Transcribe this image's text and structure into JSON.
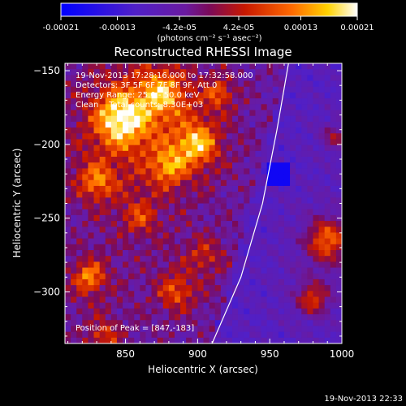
{
  "colorbar": {
    "ticks": [
      "-0.00021",
      "-0.00013",
      "-4.2e-05",
      "4.2e-05",
      "0.00013",
      "0.00021"
    ],
    "units": "(photons cm⁻² s⁻¹ asec⁻²)",
    "range": [
      -0.00021,
      0.00021
    ]
  },
  "chart_data": {
    "type": "heatmap",
    "title": "Reconstructed RHESSI Image",
    "xlabel": "Heliocentric X (arcsec)",
    "ylabel": "Heliocentric Y (arcsec)",
    "xlim": [
      808,
      1000
    ],
    "ylim": [
      -335,
      -145
    ],
    "x_ticks": [
      850,
      900,
      950,
      1000
    ],
    "y_ticks": [
      -150,
      -200,
      -250,
      -300
    ],
    "x_tick_labels": [
      "850",
      "900",
      "950",
      "1000"
    ],
    "y_tick_labels": [
      "−150",
      "−200",
      "−250",
      "−300"
    ],
    "info_lines": [
      "19-Nov-2013 17:28:16.000 to 17:32:58.000",
      "Detectors: 3F 5F 6F 7F 8F 9F, Att 0",
      "Energy Range: 25.0 - 50.0 keV",
      "Clean    Total counts: 8.30E+03"
    ],
    "peak_label": "Position of Peak = [847,-183]",
    "peak": [
      847,
      -183
    ],
    "limb_curve": [
      [
        910,
        -335
      ],
      [
        930,
        -290
      ],
      [
        945,
        -240
      ],
      [
        955,
        -190
      ],
      [
        963,
        -145
      ]
    ],
    "colormap": "blue-purple-red-yellow-white"
  },
  "footer": {
    "timestamp": "19-Nov-2013 22:33"
  }
}
